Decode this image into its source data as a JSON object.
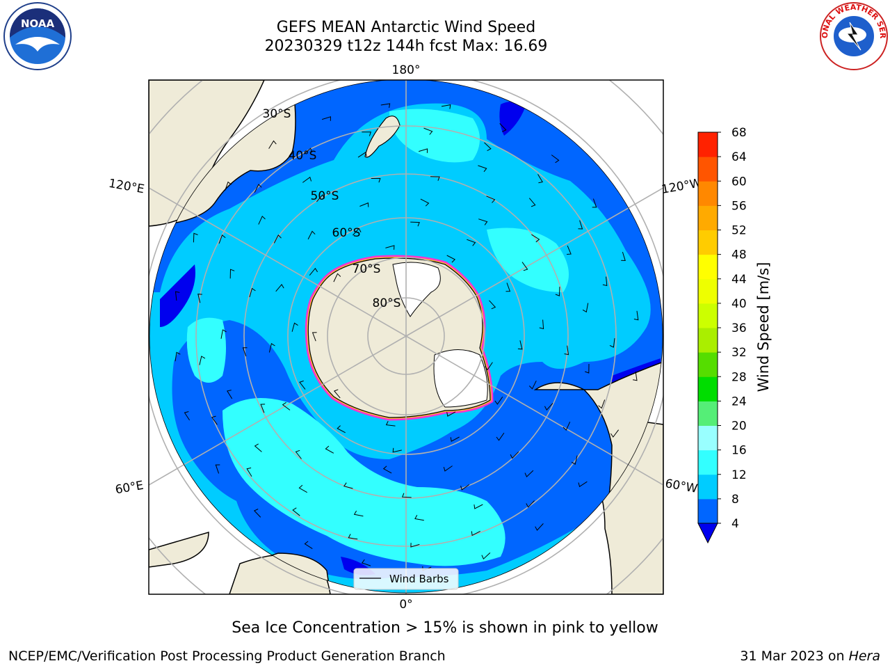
{
  "title_line1": "GEFS MEAN Antarctic Wind Speed",
  "title_line2": "20230329 t12z 144h fcst   Max: 16.69",
  "subtitle": "Sea Ice Concentration > 15% is shown in pink to yellow",
  "footer_left": "NCEP/EMC/Verification Post Processing Product Generation Branch",
  "footer_date": "31 Mar 2023 on ",
  "footer_machine": "Hera",
  "logos": {
    "left": "NOAA",
    "right": "NATIONAL WEATHER SERVICE"
  },
  "map": {
    "projection": "south-polar-stereographic",
    "lon_labels": [
      "180°",
      "120°E",
      "120°W",
      "60°E",
      "60°W",
      "0°"
    ],
    "lat_labels": [
      "30°S",
      "40°S",
      "50°S",
      "60°S",
      "70°S",
      "80°S"
    ],
    "legend_label": "Wind Barbs",
    "colors": {
      "land": "#efebd8",
      "ice": "#ffffff",
      "sea_ice_edge_pink": "#ff33cc",
      "sea_ice_edge_yellow": "#ffbb33"
    }
  },
  "colorbar": {
    "label": "Wind Speed [m/s]",
    "ticks": [
      "4",
      "8",
      "12",
      "16",
      "20",
      "24",
      "28",
      "32",
      "36",
      "40",
      "44",
      "48",
      "52",
      "56",
      "60",
      "64",
      "68"
    ],
    "colors": [
      "#0066ff",
      "#00ccff",
      "#33ffff",
      "#99ffff",
      "#55ee77",
      "#00dd00",
      "#55dd00",
      "#aaee00",
      "#ccff00",
      "#eeff00",
      "#ffff00",
      "#ffcc00",
      "#ffaa00",
      "#ff8800",
      "#ff5500",
      "#ff2200"
    ],
    "under_color": "#0000ee"
  }
}
